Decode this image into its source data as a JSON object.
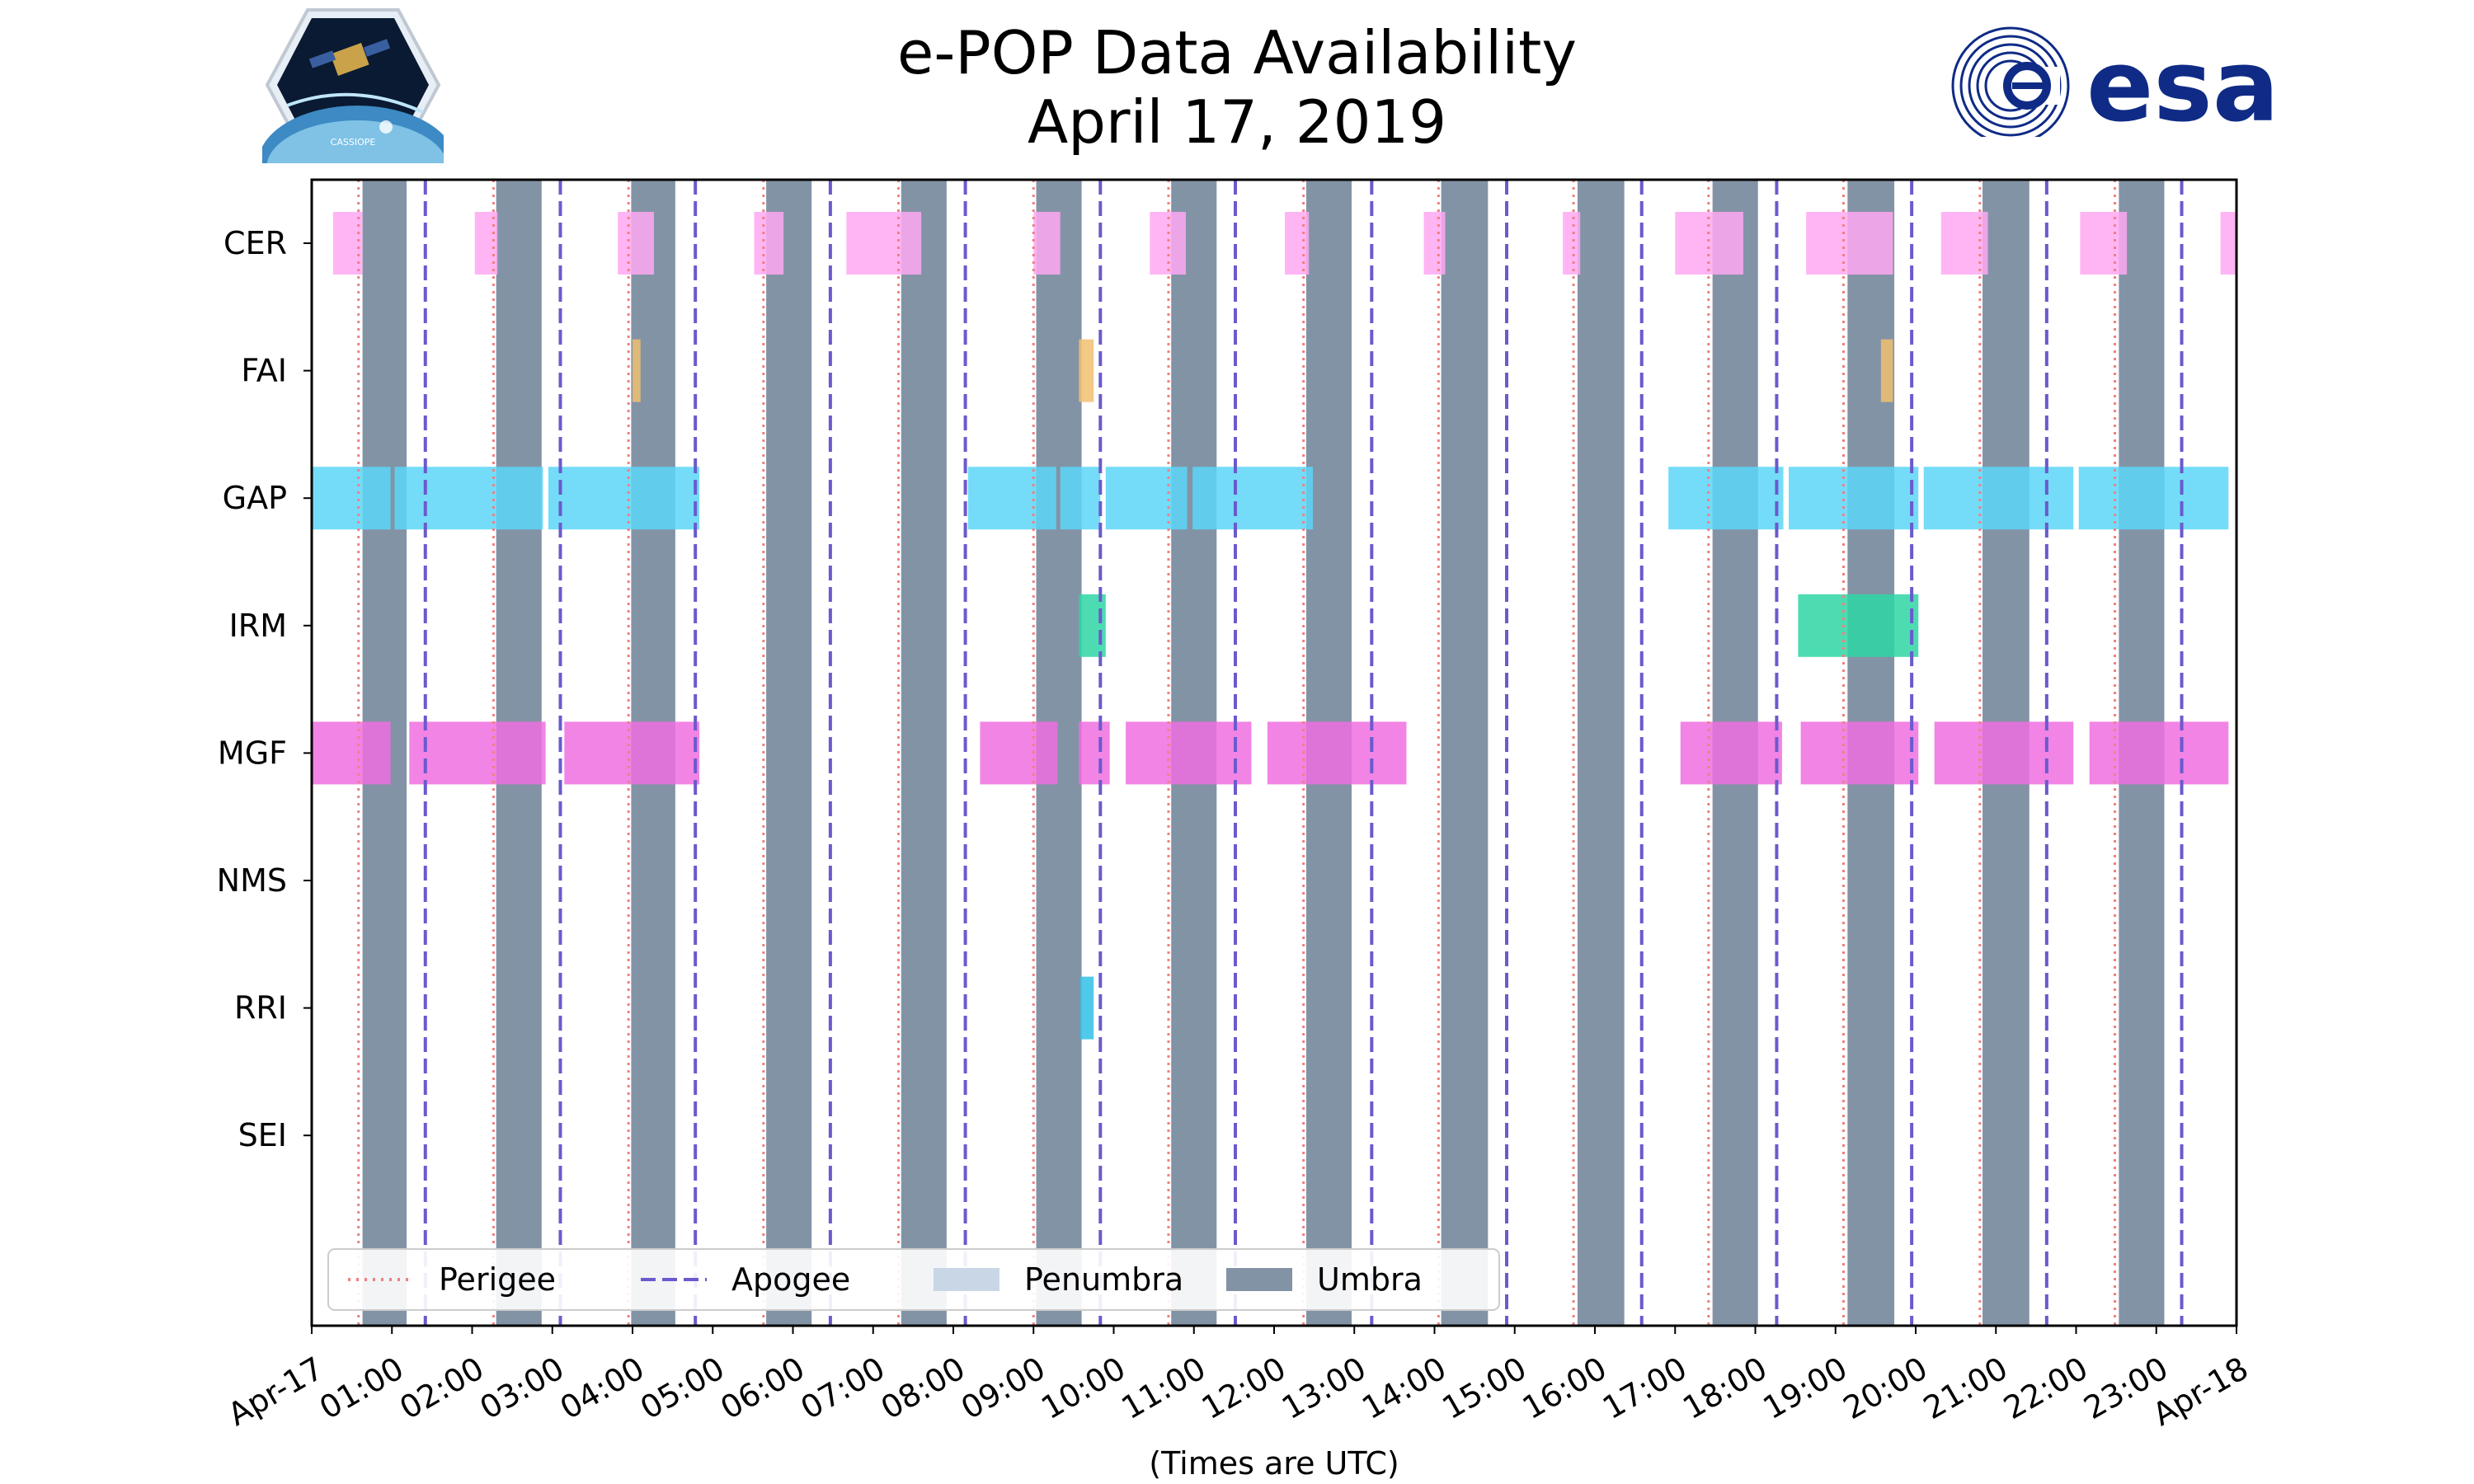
{
  "title": {
    "line1": "e-POP Data Availability",
    "line2": "April 17, 2019"
  },
  "logos": {
    "left": {
      "icon": "cassiope-mission-badge-icon",
      "text": "CASSIOPE"
    },
    "right": {
      "icon": "esa-logo-icon",
      "text": "esa",
      "color": "#0f2b86"
    }
  },
  "colors": {
    "umbra": "#8393a6",
    "penumbra": "#c9d6e6",
    "perigee": "#f08080",
    "apogee": "#6a5acd",
    "CER": "#ffa8f2",
    "FAI": "#f0c070",
    "GAP": "#5cd6f7",
    "IRM": "#2ed6a4",
    "MGF": "#ee6ee0",
    "NMS": "#bbbbbb",
    "RRI": "#33bfe6",
    "SEI": "#bbbbbb"
  },
  "chart_data": {
    "type": "timeline",
    "xlabel": "(Times are UTC)",
    "xlim": [
      "2019-04-17 00:00",
      "2019-04-18 00:00"
    ],
    "x_ticks": [
      "Apr-17",
      "01:00",
      "02:00",
      "03:00",
      "04:00",
      "05:00",
      "06:00",
      "07:00",
      "08:00",
      "09:00",
      "10:00",
      "11:00",
      "12:00",
      "13:00",
      "14:00",
      "15:00",
      "16:00",
      "17:00",
      "18:00",
      "19:00",
      "20:00",
      "21:00",
      "22:00",
      "23:00",
      "Apr-18"
    ],
    "rows": [
      "CER",
      "FAI",
      "GAP",
      "IRM",
      "MGF",
      "NMS",
      "RRI",
      "SEI"
    ],
    "legend": {
      "placement": "lower-left",
      "entries": [
        {
          "label": "Perigee",
          "style": "dotted"
        },
        {
          "label": "Apogee",
          "style": "dashed"
        },
        {
          "label": "Penumbra",
          "style": "patch"
        },
        {
          "label": "Umbra",
          "style": "patch"
        }
      ]
    },
    "umbra": [
      [
        "00:38",
        "01:11"
      ],
      [
        "02:18",
        "02:52"
      ],
      [
        "03:59",
        "04:32"
      ],
      [
        "05:40",
        "06:14"
      ],
      [
        "07:21",
        "07:55"
      ],
      [
        "09:02",
        "09:36"
      ],
      [
        "10:43",
        "11:17"
      ],
      [
        "12:24",
        "12:58"
      ],
      [
        "14:05",
        "14:40"
      ],
      [
        "15:47",
        "16:22"
      ],
      [
        "17:28",
        "18:02"
      ],
      [
        "19:09",
        "19:44"
      ],
      [
        "20:50",
        "21:25"
      ],
      [
        "22:32",
        "23:06"
      ]
    ],
    "perigee": [
      "00:35",
      "02:16",
      "03:57",
      "05:38",
      "07:19",
      "09:00",
      "10:41",
      "12:22",
      "14:03",
      "15:44",
      "17:25",
      "19:06",
      "20:48",
      "22:29"
    ],
    "apogee": [
      "01:25",
      "03:06",
      "04:47",
      "06:28",
      "08:09",
      "09:50",
      "11:31",
      "13:13",
      "14:54",
      "16:35",
      "18:16",
      "19:57",
      "21:38",
      "23:19"
    ],
    "segments": {
      "CER": [
        [
          "00:16",
          "00:38"
        ],
        [
          "02:02",
          "02:19"
        ],
        [
          "03:49",
          "04:16"
        ],
        [
          "05:31",
          "05:53"
        ],
        [
          "06:40",
          "07:36"
        ],
        [
          "09:00",
          "09:20"
        ],
        [
          "10:27",
          "10:54"
        ],
        [
          "12:08",
          "12:26"
        ],
        [
          "13:52",
          "14:08"
        ],
        [
          "15:36",
          "15:49"
        ],
        [
          "17:00",
          "17:51"
        ],
        [
          "18:38",
          "19:43"
        ],
        [
          "20:19",
          "20:54"
        ],
        [
          "22:03",
          "22:38"
        ],
        [
          "23:48",
          "24:00"
        ]
      ],
      "FAI": [
        [
          "04:00",
          "04:06"
        ],
        [
          "09:34",
          "09:45"
        ],
        [
          "19:34",
          "19:43"
        ]
      ],
      "GAP": [
        [
          "00:00",
          "00:59"
        ],
        [
          "01:02",
          "02:53"
        ],
        [
          "02:57",
          "04:50"
        ],
        [
          "08:11",
          "09:17"
        ],
        [
          "09:20",
          "09:50"
        ],
        [
          "09:54",
          "10:55"
        ],
        [
          "10:59",
          "12:29"
        ],
        [
          "16:55",
          "18:21"
        ],
        [
          "18:25",
          "20:02"
        ],
        [
          "20:06",
          "21:58"
        ],
        [
          "22:02",
          "23:54"
        ]
      ],
      "IRM": [
        [
          "09:34",
          "09:54"
        ],
        [
          "18:32",
          "20:02"
        ]
      ],
      "MGF": [
        [
          "00:00",
          "00:59"
        ],
        [
          "01:13",
          "02:55"
        ],
        [
          "03:09",
          "04:50"
        ],
        [
          "08:20",
          "09:18"
        ],
        [
          "09:34",
          "09:57"
        ],
        [
          "10:09",
          "11:43"
        ],
        [
          "11:55",
          "13:39"
        ],
        [
          "17:04",
          "18:20"
        ],
        [
          "18:34",
          "20:02"
        ],
        [
          "20:14",
          "21:58"
        ],
        [
          "22:10",
          "23:54"
        ]
      ],
      "NMS": [],
      "RRI": [
        [
          "09:35",
          "09:45"
        ]
      ],
      "SEI": []
    }
  }
}
